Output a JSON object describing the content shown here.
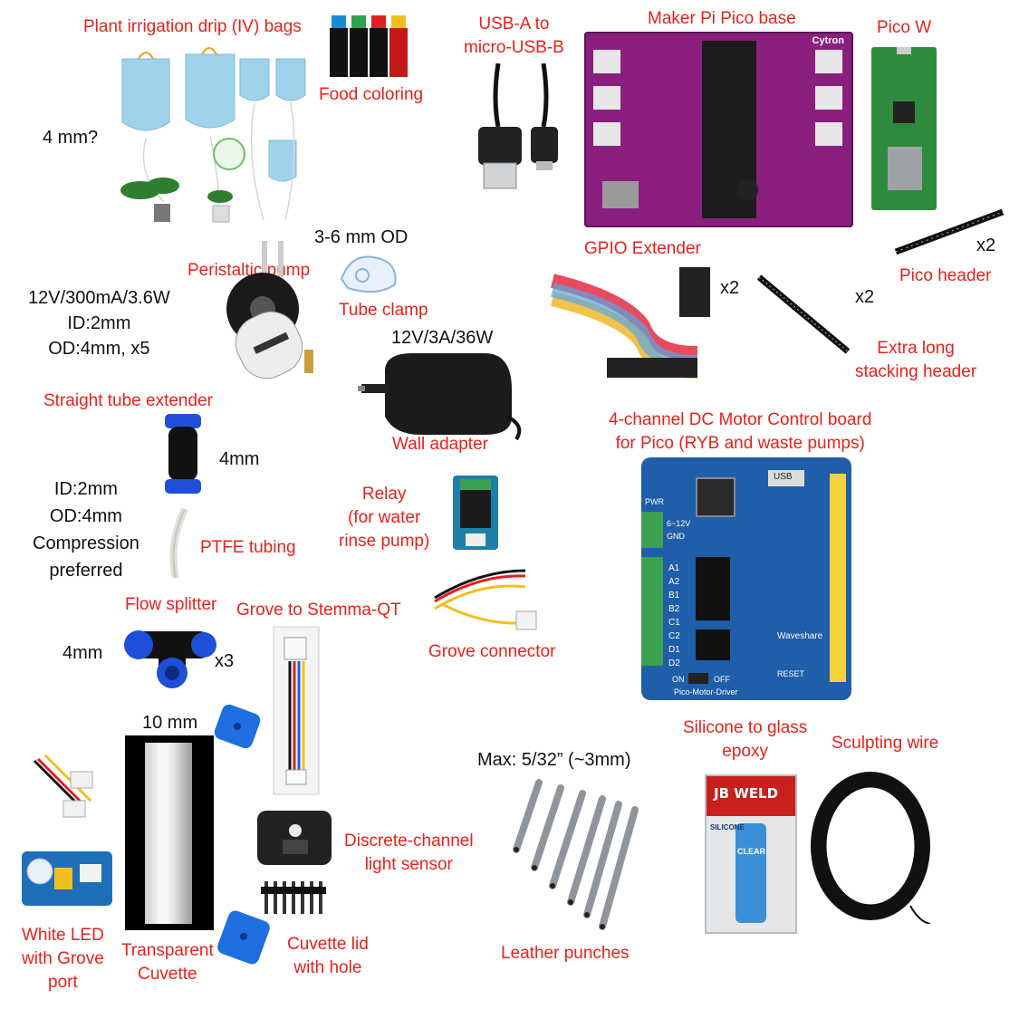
{
  "labels": {
    "iv_bags": "Plant irrigation drip (IV) bags",
    "food_coloring": "Food coloring",
    "usb_cable": "USB-A to\nmicro-USB-B",
    "maker_pi": "Maker Pi Pico base",
    "pico_w": "Pico W",
    "peristaltic_pump": "Peristaltic pump",
    "tube_clamp": "Tube clamp",
    "gpio_extender": "GPIO Extender",
    "pico_header": "Pico header",
    "stacking_header": "Extra long\nstacking header",
    "straight_extender": "Straight tube extender",
    "wall_adapter": "Wall adapter",
    "motor_board": "4-channel DC Motor Control board\nfor Pico (RYB and waste pumps)",
    "relay": "Relay\n(for water\nrinse pump)",
    "ptfe": "PTFE tubing",
    "flow_splitter": "Flow splitter",
    "grove_stemma": "Grove to Stemma-QT",
    "grove_connector": "Grove connector",
    "silicone": "Silicone to glass\nepoxy",
    "sculpting_wire": "Sculpting wire",
    "light_sensor": "Discrete-channel\nlight sensor",
    "leather_punches": "Leather punches",
    "white_led": "White LED\nwith Grove\nport",
    "cuvette": "Transparent\nCuvette",
    "cuvette_lid": "Cuvette lid\nwith hole"
  },
  "notes": {
    "four_mm_q": "4 mm?",
    "od_3_6": "3-6 mm OD",
    "pump_spec": "12V/300mA/3.6W\nID:2mm\nOD:4mm, x5",
    "adapter_spec": "12V/3A/36W",
    "extender_4mm": "4mm",
    "tubing_spec": "ID:2mm\nOD:4mm\nCompression\npreferred",
    "splitter_4mm": "4mm",
    "x3": "x3",
    "gpio_x2": "x2",
    "header_x2": "x2",
    "stack_x2": "x2",
    "ten_mm": "10 mm",
    "max_punch": "Max: 5/32” (~3mm)"
  },
  "board_text": {
    "maker_brand": "Cytron",
    "motor_brand": "Waveshare",
    "motor_name": "Pico-Motor-Driver",
    "reset": "RESET",
    "on": "ON",
    "off": "OFF",
    "pwr": "PWR",
    "usb": "USB",
    "gnd": "GND",
    "volt": "6~12V",
    "a1": "A1",
    "a2": "A2",
    "b1": "B1",
    "b2": "B2",
    "c1": "C1",
    "c2": "C2",
    "d1": "D1",
    "d2": "D2",
    "jb_weld": "JB WELD",
    "clear": "CLEAR",
    "silicone_word": "SILICONE"
  },
  "colors": {
    "label_red": "#e8211b",
    "text_black": "#111111",
    "maker_purple": "#8a1f7e",
    "motor_blue": "#1f5ea8",
    "pico_green": "#2e8b3e"
  }
}
